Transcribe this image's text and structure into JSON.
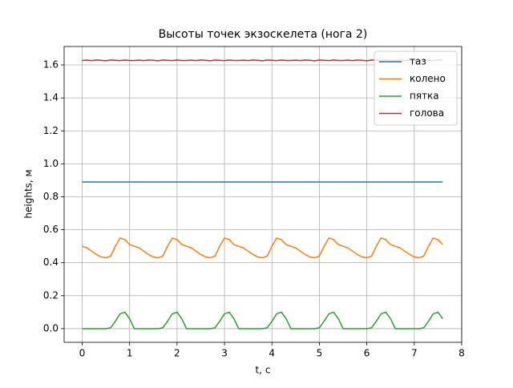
{
  "chart_data": {
    "type": "line",
    "title": "Высоты точек экзоскелета (нога 2)",
    "xlabel": "t, c",
    "ylabel": "heights, м",
    "x": [
      0,
      0.1,
      0.2,
      0.3,
      0.4,
      0.5,
      0.6,
      0.7,
      0.8,
      0.9,
      1.0,
      1.1,
      1.2,
      1.3,
      1.4,
      1.5,
      1.6,
      1.7,
      1.8,
      1.9,
      2.0,
      2.1,
      2.2,
      2.3,
      2.4,
      2.5,
      2.6,
      2.7,
      2.8,
      2.9,
      3.0,
      3.1,
      3.2,
      3.3,
      3.4,
      3.5,
      3.6,
      3.7,
      3.8,
      3.9,
      4.0,
      4.1,
      4.2,
      4.3,
      4.4,
      4.5,
      4.6,
      4.7,
      4.8,
      4.9,
      5.0,
      5.1,
      5.2,
      5.3,
      5.4,
      5.5,
      5.6,
      5.7,
      5.8,
      5.9,
      6.0,
      6.1,
      6.2,
      6.3,
      6.4,
      6.5,
      6.6,
      6.7,
      6.8,
      6.9,
      7.0,
      7.1,
      7.2,
      7.3,
      7.4,
      7.5,
      7.6
    ],
    "series": [
      {
        "name": "таз",
        "color": "#1f77b4",
        "values": [
          0.89,
          0.89,
          0.89,
          0.89,
          0.89,
          0.89,
          0.89,
          0.89,
          0.89,
          0.89,
          0.89,
          0.89,
          0.89,
          0.89,
          0.89,
          0.89,
          0.89,
          0.89,
          0.89,
          0.89,
          0.89,
          0.89,
          0.89,
          0.89,
          0.89,
          0.89,
          0.89,
          0.89,
          0.89,
          0.89,
          0.89,
          0.89,
          0.89,
          0.89,
          0.89,
          0.89,
          0.89,
          0.89,
          0.89,
          0.89,
          0.89,
          0.89,
          0.89,
          0.89,
          0.89,
          0.89,
          0.89,
          0.89,
          0.89,
          0.89,
          0.89,
          0.89,
          0.89,
          0.89,
          0.89,
          0.89,
          0.89,
          0.89,
          0.89,
          0.89,
          0.89,
          0.89,
          0.89,
          0.89,
          0.89,
          0.89,
          0.89,
          0.89,
          0.89,
          0.89,
          0.89,
          0.89,
          0.89,
          0.89,
          0.89,
          0.89,
          0.89
        ]
      },
      {
        "name": "колено",
        "color": "#ff7f0e",
        "values": [
          0.5,
          0.49,
          0.47,
          0.45,
          0.435,
          0.43,
          0.44,
          0.5,
          0.55,
          0.54,
          0.51,
          0.5,
          0.49,
          0.47,
          0.45,
          0.435,
          0.43,
          0.44,
          0.5,
          0.55,
          0.54,
          0.51,
          0.5,
          0.49,
          0.47,
          0.45,
          0.435,
          0.43,
          0.44,
          0.5,
          0.55,
          0.54,
          0.51,
          0.5,
          0.49,
          0.47,
          0.45,
          0.435,
          0.43,
          0.44,
          0.5,
          0.55,
          0.54,
          0.51,
          0.5,
          0.49,
          0.47,
          0.45,
          0.435,
          0.43,
          0.44,
          0.5,
          0.55,
          0.54,
          0.51,
          0.5,
          0.49,
          0.47,
          0.45,
          0.435,
          0.43,
          0.44,
          0.5,
          0.55,
          0.54,
          0.51,
          0.5,
          0.49,
          0.47,
          0.45,
          0.435,
          0.43,
          0.44,
          0.5,
          0.55,
          0.54,
          0.51
        ]
      },
      {
        "name": "пятка",
        "color": "#2ca02c",
        "values": [
          0,
          0,
          0,
          0,
          0,
          0,
          0.005,
          0.045,
          0.09,
          0.1,
          0.06,
          0,
          0,
          0,
          0,
          0,
          0,
          0.005,
          0.045,
          0.09,
          0.1,
          0.06,
          0,
          0,
          0,
          0,
          0,
          0,
          0.005,
          0.045,
          0.09,
          0.1,
          0.06,
          0,
          0,
          0,
          0,
          0,
          0,
          0.005,
          0.045,
          0.09,
          0.1,
          0.06,
          0,
          0,
          0,
          0,
          0,
          0,
          0.005,
          0.045,
          0.09,
          0.1,
          0.06,
          0,
          0,
          0,
          0,
          0,
          0,
          0.005,
          0.045,
          0.09,
          0.1,
          0.06,
          0,
          0,
          0,
          0,
          0,
          0,
          0.005,
          0.045,
          0.09,
          0.1,
          0.06
        ]
      },
      {
        "name": "голова",
        "color": "#d62728",
        "values": [
          1.627,
          1.629,
          1.626,
          1.63,
          1.628,
          1.625,
          1.63,
          1.628,
          1.626,
          1.63,
          1.627,
          1.627,
          1.629,
          1.626,
          1.63,
          1.628,
          1.625,
          1.63,
          1.628,
          1.626,
          1.63,
          1.627,
          1.627,
          1.629,
          1.626,
          1.63,
          1.628,
          1.625,
          1.63,
          1.628,
          1.626,
          1.63,
          1.627,
          1.627,
          1.629,
          1.626,
          1.63,
          1.628,
          1.625,
          1.63,
          1.628,
          1.626,
          1.63,
          1.627,
          1.627,
          1.629,
          1.626,
          1.63,
          1.628,
          1.625,
          1.63,
          1.628,
          1.626,
          1.63,
          1.627,
          1.627,
          1.629,
          1.626,
          1.63,
          1.628,
          1.625,
          1.63,
          1.628,
          1.626,
          1.63,
          1.627,
          1.627,
          1.629,
          1.626,
          1.63,
          1.628,
          1.625,
          1.63,
          1.628,
          1.626,
          1.63,
          1.627
        ]
      }
    ],
    "xlim": [
      -0.38,
      8.0
    ],
    "ylim": [
      -0.083,
      1.712
    ],
    "xticks": [
      0,
      1,
      2,
      3,
      4,
      5,
      6,
      7,
      8
    ],
    "yticks": [
      {
        "value": 0,
        "label": "0.0"
      },
      0.2,
      0.4,
      0.6,
      0.8,
      {
        "value": 1,
        "label": "1.0"
      },
      1.2,
      1.4,
      1.6
    ],
    "grid": true,
    "legend": "upper right"
  }
}
